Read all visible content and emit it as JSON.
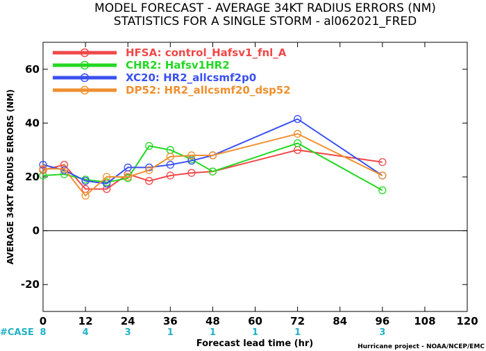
{
  "chart_data": {
    "type": "line",
    "title": "MODEL FORECAST - AVERAGE 34KT RADIUS ERRORS (NM)",
    "subtitle": "STATISTICS FOR A SINGLE STORM - al062021_FRED",
    "xlabel": "Forecast lead time (hr)",
    "ylabel": "AVERAGE 34KT RADIUS ERRORS (NM)",
    "xlim": [
      0,
      120
    ],
    "ylim": [
      -30,
      70
    ],
    "xticks": [
      0,
      12,
      24,
      36,
      48,
      60,
      72,
      84,
      96,
      108,
      120
    ],
    "yticks": [
      -20,
      0,
      20,
      40,
      60
    ],
    "zero_line": true,
    "legend_position": "top-left",
    "case_label": "#CASE",
    "cases": [
      {
        "x": 0,
        "n": "8"
      },
      {
        "x": 12,
        "n": "4"
      },
      {
        "x": 24,
        "n": "3"
      },
      {
        "x": 36,
        "n": "1"
      },
      {
        "x": 48,
        "n": "1"
      },
      {
        "x": 60,
        "n": "1"
      },
      {
        "x": 72,
        "n": "1"
      },
      {
        "x": 96,
        "n": "3"
      }
    ],
    "series": [
      {
        "name": "HFSA: control_Hafsv1_fnl_A",
        "color": "#f04848",
        "points": [
          [
            0,
            22.5
          ],
          [
            6,
            24.5
          ],
          [
            12,
            15.5
          ],
          [
            18,
            15.5
          ],
          [
            24,
            21
          ],
          [
            30,
            18.5
          ],
          [
            36,
            20.5
          ],
          [
            42,
            21.5
          ],
          [
            48,
            22
          ],
          [
            72,
            30
          ],
          [
            96,
            25.5
          ]
        ]
      },
      {
        "name": "CHR2: Hafsv1HR2",
        "color": "#22d822",
        "points": [
          [
            0,
            20.5
          ],
          [
            6,
            21
          ],
          [
            12,
            19
          ],
          [
            18,
            18
          ],
          [
            24,
            19.5
          ],
          [
            30,
            31.5
          ],
          [
            36,
            30
          ],
          [
            42,
            26.5
          ],
          [
            48,
            22
          ],
          [
            72,
            32.5
          ],
          [
            96,
            15
          ]
        ]
      },
      {
        "name": "XC20: HR2_allcsmf2p0",
        "color": "#3a50f0",
        "points": [
          [
            0,
            24.5
          ],
          [
            6,
            22.5
          ],
          [
            12,
            18.5
          ],
          [
            18,
            17.5
          ],
          [
            24,
            23.5
          ],
          [
            30,
            23.5
          ],
          [
            36,
            24.5
          ],
          [
            42,
            26
          ],
          [
            48,
            28
          ],
          [
            72,
            41.5
          ],
          [
            96,
            20.5
          ]
        ]
      },
      {
        "name": "DP52: HR2_allcsmf20_dsp52",
        "color": "#f09030",
        "points": [
          [
            0,
            23
          ],
          [
            6,
            23
          ],
          [
            12,
            13
          ],
          [
            18,
            20
          ],
          [
            24,
            20
          ],
          [
            30,
            22.5
          ],
          [
            36,
            27.5
          ],
          [
            42,
            28
          ],
          [
            48,
            28
          ],
          [
            72,
            36
          ],
          [
            96,
            20.5
          ]
        ]
      }
    ],
    "credit": "Hurricane project - NOAA/NCEP/EMC"
  }
}
